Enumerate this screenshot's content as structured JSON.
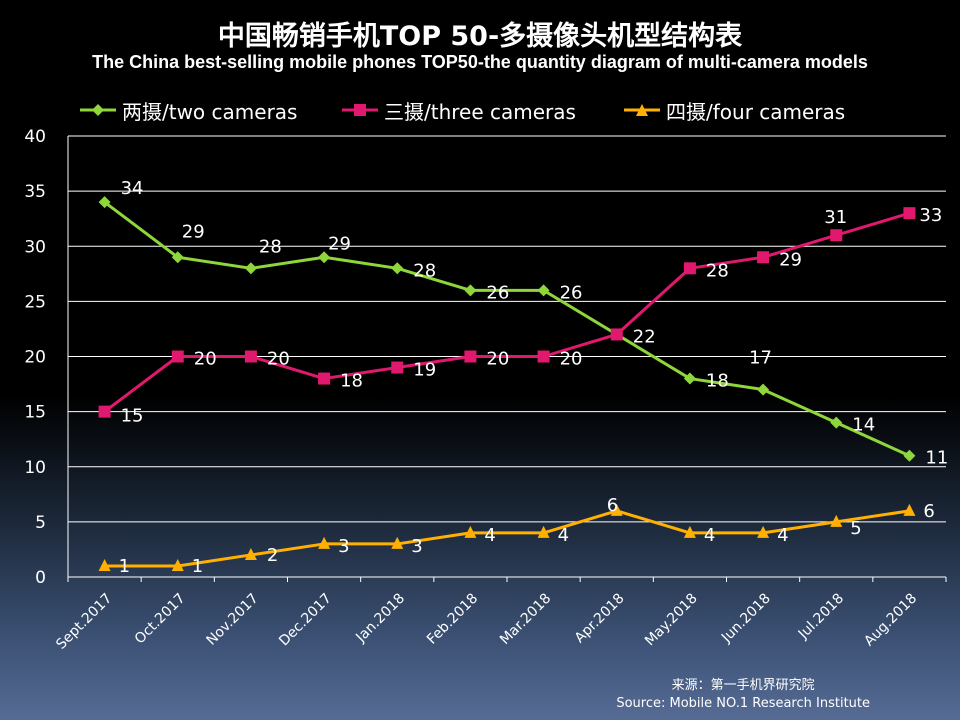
{
  "title_zh": "中国畅销手机TOP 50-多摄像头机型结构表",
  "title_en": "The China best-selling mobile phones TOP50-the quantity diagram of multi-camera models",
  "source_zh": "来源：第一手机界研究院",
  "source_en": "Source: Mobile NO.1 Research Institute",
  "chart_data": {
    "type": "line",
    "categories": [
      "Sept.2017",
      "Oct.2017",
      "Nov.2017",
      "Dec.2017",
      "Jan.2018",
      "Feb.2018",
      "Mar.2018",
      "Apr.2018",
      "May.2018",
      "Jun.2018",
      "Jul.2018",
      "Aug.2018"
    ],
    "series": [
      {
        "name": "两摄/two cameras",
        "color": "#8ed63a",
        "marker": "diamond",
        "values": [
          34,
          29,
          28,
          29,
          28,
          26,
          26,
          22,
          18,
          17,
          14,
          11
        ]
      },
      {
        "name": "三摄/three cameras",
        "color": "#e0186e",
        "marker": "square",
        "values": [
          15,
          20,
          20,
          18,
          19,
          20,
          20,
          22,
          28,
          29,
          31,
          33
        ]
      },
      {
        "name": "四摄/four cameras",
        "color": "#ffb000",
        "marker": "triangle",
        "values": [
          1,
          1,
          2,
          3,
          3,
          4,
          4,
          6,
          4,
          4,
          5,
          6
        ]
      }
    ],
    "ylim": [
      0,
      40
    ],
    "yticks": [
      0,
      5,
      10,
      15,
      20,
      25,
      30,
      35,
      40
    ],
    "grid": true,
    "legend": "top"
  }
}
